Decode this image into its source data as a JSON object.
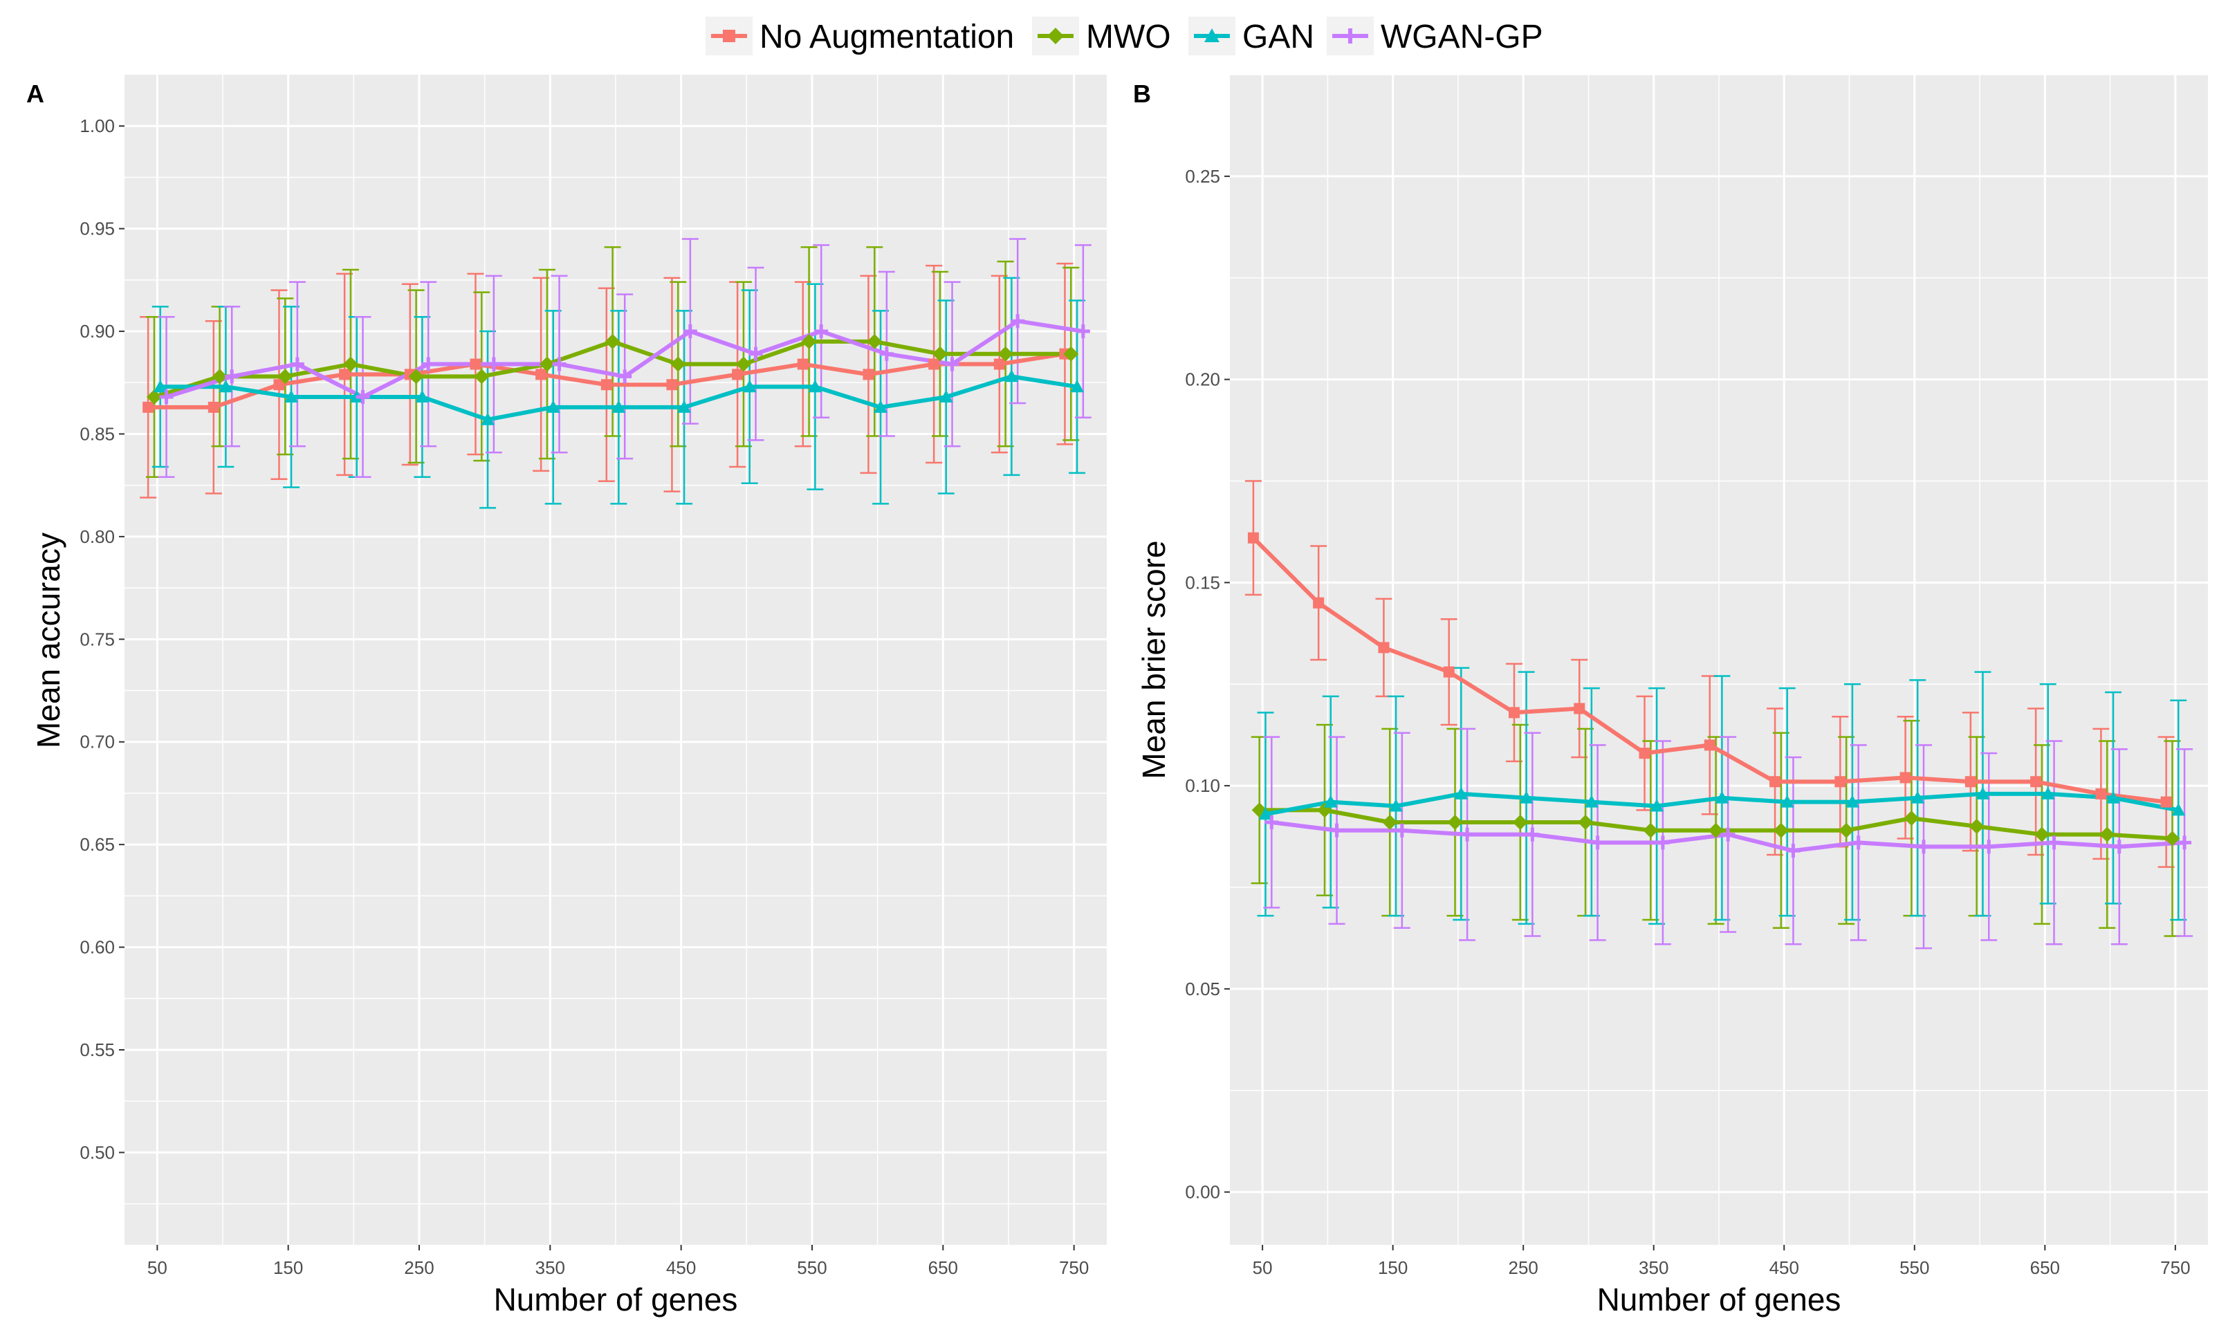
{
  "legend": [
    {
      "name": "No Augmentation",
      "color": "#F8766D",
      "marker": "square"
    },
    {
      "name": "MWO",
      "color": "#7CAE00",
      "marker": "diamond"
    },
    {
      "name": "GAN",
      "color": "#00BFC4",
      "marker": "triangle"
    },
    {
      "name": "WGAN-GP",
      "color": "#C77CFF",
      "marker": "plus"
    }
  ],
  "chart_data": [
    {
      "type": "line",
      "panel": "A",
      "xlabel": "Number of genes",
      "ylabel": "Mean accuracy",
      "xlim": [
        25,
        775
      ],
      "ylim": [
        0.455,
        1.025
      ],
      "xticks": [
        50,
        150,
        250,
        350,
        450,
        550,
        650,
        750
      ],
      "yticks": [
        0.5,
        0.55,
        0.6,
        0.65,
        0.7,
        0.75,
        0.8,
        0.85,
        0.9,
        0.95,
        1.0
      ],
      "ytick_labels": [
        "0.50",
        "0.55",
        "0.60",
        "0.65",
        "0.70",
        "0.75",
        "0.80",
        "0.85",
        "0.90",
        "0.95",
        "1.00"
      ],
      "x": [
        50,
        100,
        150,
        200,
        250,
        300,
        350,
        400,
        450,
        500,
        550,
        600,
        650,
        700,
        750
      ],
      "series": [
        {
          "name": "No Augmentation",
          "offset": -6,
          "values": [
            0.863,
            0.863,
            0.874,
            0.879,
            0.879,
            0.884,
            0.879,
            0.874,
            0.874,
            0.879,
            0.884,
            0.879,
            0.884,
            0.884,
            0.889
          ],
          "err": [
            0.044,
            0.042,
            0.046,
            0.049,
            0.044,
            0.044,
            0.047,
            0.047,
            0.052,
            0.045,
            0.04,
            0.048,
            0.048,
            0.043,
            0.044
          ]
        },
        {
          "name": "MWO",
          "offset": -2,
          "values": [
            0.868,
            0.878,
            0.878,
            0.884,
            0.878,
            0.878,
            0.884,
            0.895,
            0.884,
            0.884,
            0.895,
            0.895,
            0.889,
            0.889,
            0.889
          ],
          "err": [
            0.039,
            0.034,
            0.038,
            0.046,
            0.042,
            0.041,
            0.046,
            0.046,
            0.04,
            0.04,
            0.046,
            0.046,
            0.04,
            0.045,
            0.042
          ]
        },
        {
          "name": "GAN",
          "offset": 2,
          "values": [
            0.873,
            0.873,
            0.868,
            0.868,
            0.868,
            0.857,
            0.863,
            0.863,
            0.863,
            0.873,
            0.873,
            0.863,
            0.868,
            0.878,
            0.873
          ],
          "err": [
            0.039,
            0.039,
            0.044,
            0.039,
            0.039,
            0.043,
            0.047,
            0.047,
            0.047,
            0.047,
            0.05,
            0.047,
            0.047,
            0.048,
            0.042
          ]
        },
        {
          "name": "WGAN-GP",
          "offset": 6,
          "values": [
            0.868,
            0.878,
            0.884,
            0.868,
            0.884,
            0.884,
            0.884,
            0.878,
            0.9,
            0.889,
            0.9,
            0.889,
            0.884,
            0.905,
            0.9
          ],
          "err": [
            0.039,
            0.034,
            0.04,
            0.039,
            0.04,
            0.043,
            0.043,
            0.04,
            0.045,
            0.042,
            0.042,
            0.04,
            0.04,
            0.04,
            0.042
          ]
        }
      ]
    },
    {
      "type": "line",
      "panel": "B",
      "xlabel": "Number of genes",
      "ylabel": "Mean brier score",
      "xlim": [
        25,
        775
      ],
      "ylim": [
        -0.013,
        0.275
      ],
      "xticks": [
        50,
        150,
        250,
        350,
        450,
        550,
        650,
        750
      ],
      "yticks": [
        0.0,
        0.05,
        0.1,
        0.15,
        0.2,
        0.25
      ],
      "ytick_labels": [
        "0.00",
        "0.05",
        "0.10",
        "0.15",
        "0.20",
        "0.25"
      ],
      "x": [
        50,
        100,
        150,
        200,
        250,
        300,
        350,
        400,
        450,
        500,
        550,
        600,
        650,
        700,
        750
      ],
      "series": [
        {
          "name": "No Augmentation",
          "offset": -6,
          "values": [
            0.161,
            0.145,
            0.134,
            0.128,
            0.118,
            0.119,
            0.108,
            0.11,
            0.101,
            0.101,
            0.102,
            0.101,
            0.101,
            0.098,
            0.096
          ],
          "err": [
            0.014,
            0.014,
            0.012,
            0.013,
            0.012,
            0.012,
            0.014,
            0.017,
            0.018,
            0.016,
            0.015,
            0.017,
            0.018,
            0.016,
            0.016
          ]
        },
        {
          "name": "MWO",
          "offset": -2,
          "values": [
            0.094,
            0.094,
            0.091,
            0.091,
            0.091,
            0.091,
            0.089,
            0.089,
            0.089,
            0.089,
            0.092,
            0.09,
            0.088,
            0.088,
            0.087
          ],
          "err": [
            0.018,
            0.021,
            0.023,
            0.023,
            0.024,
            0.023,
            0.022,
            0.023,
            0.024,
            0.023,
            0.024,
            0.022,
            0.022,
            0.023,
            0.024
          ]
        },
        {
          "name": "GAN",
          "offset": 2,
          "values": [
            0.093,
            0.096,
            0.095,
            0.098,
            0.097,
            0.096,
            0.095,
            0.097,
            0.096,
            0.096,
            0.097,
            0.098,
            0.098,
            0.097,
            0.094
          ],
          "err": [
            0.025,
            0.026,
            0.027,
            0.031,
            0.031,
            0.028,
            0.029,
            0.03,
            0.028,
            0.029,
            0.029,
            0.03,
            0.027,
            0.026,
            0.027
          ]
        },
        {
          "name": "WGAN-GP",
          "offset": 6,
          "values": [
            0.091,
            0.089,
            0.089,
            0.088,
            0.088,
            0.086,
            0.086,
            0.088,
            0.084,
            0.086,
            0.085,
            0.085,
            0.086,
            0.085,
            0.086
          ],
          "err": [
            0.021,
            0.023,
            0.024,
            0.026,
            0.025,
            0.024,
            0.025,
            0.024,
            0.023,
            0.024,
            0.025,
            0.023,
            0.025,
            0.024,
            0.023
          ]
        }
      ]
    }
  ]
}
